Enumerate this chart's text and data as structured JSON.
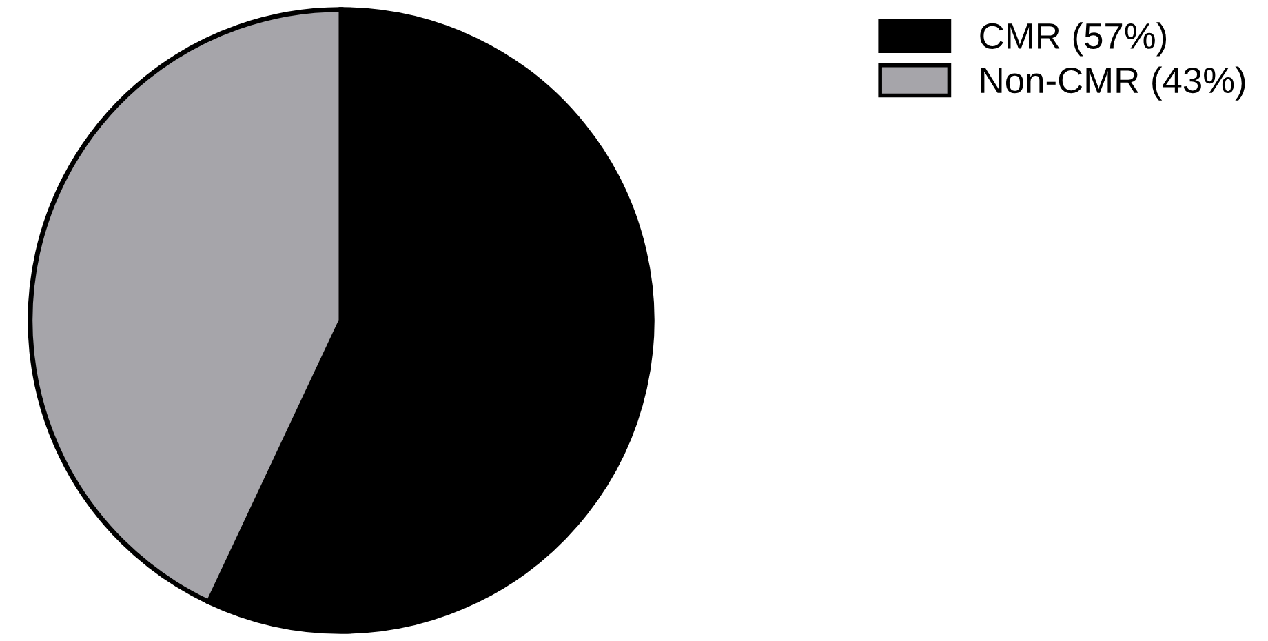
{
  "chart_data": {
    "type": "pie",
    "categories": [
      "CMR (57%)",
      "Non-CMR (43%)"
    ],
    "values": [
      57,
      43
    ],
    "colors": [
      "#000000",
      "#a6a5aa"
    ],
    "legend": "top right"
  }
}
